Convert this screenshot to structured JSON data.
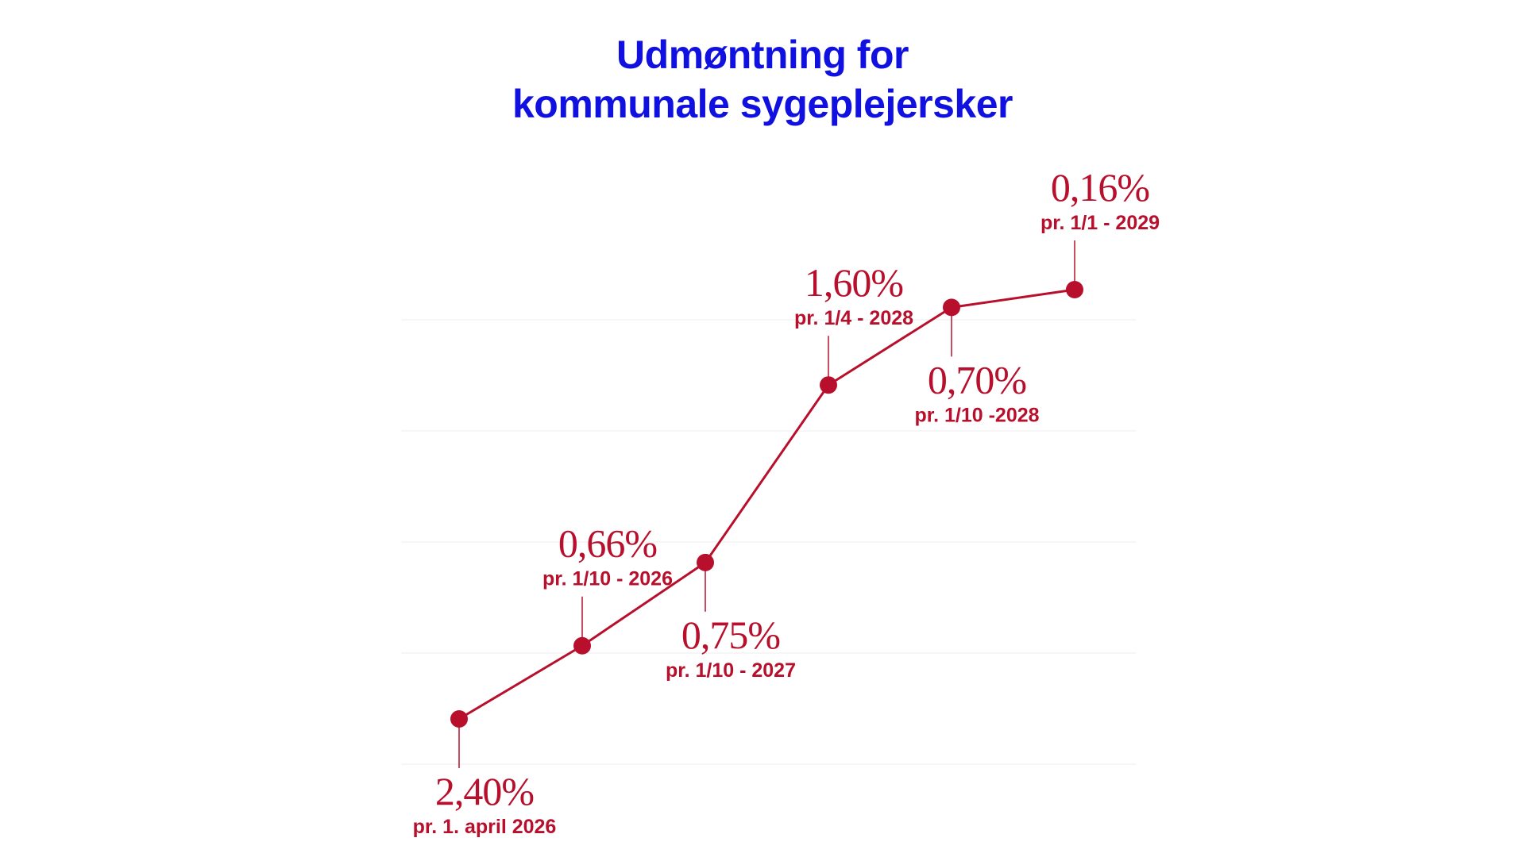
{
  "title_lines": [
    "Udmøntning for",
    "kommunale sygeplejersker"
  ],
  "colors": {
    "title": "#1010e0",
    "series": "#b8102c",
    "grid": "#ececec"
  },
  "chart_data": {
    "type": "line",
    "title": "Udmøntning for kommunale sygeplejersker",
    "xlabel": "",
    "ylabel": "",
    "grid": true,
    "legend": "none",
    "cumulative_reference": "increase per step (cumulative level plotted)",
    "points": [
      {
        "value": 2.4,
        "value_label": "2,40%",
        "date_label": "pr. 1. april 2026",
        "label_position": "below"
      },
      {
        "value": 0.66,
        "value_label": "0,66%",
        "date_label": "pr. 1/10 - 2026",
        "label_position": "above"
      },
      {
        "value": 0.75,
        "value_label": "0,75%",
        "date_label": "pr. 1/10 - 2027",
        "label_position": "below"
      },
      {
        "value": 1.6,
        "value_label": "1,60%",
        "date_label": "pr. 1/4 - 2028",
        "label_position": "above"
      },
      {
        "value": 0.7,
        "value_label": "0,70%",
        "date_label": "pr. 1/10 -2028",
        "label_position": "below"
      },
      {
        "value": 0.16,
        "value_label": "0,16%",
        "date_label": "pr. 1/1 - 2029",
        "label_position": "above"
      }
    ]
  }
}
